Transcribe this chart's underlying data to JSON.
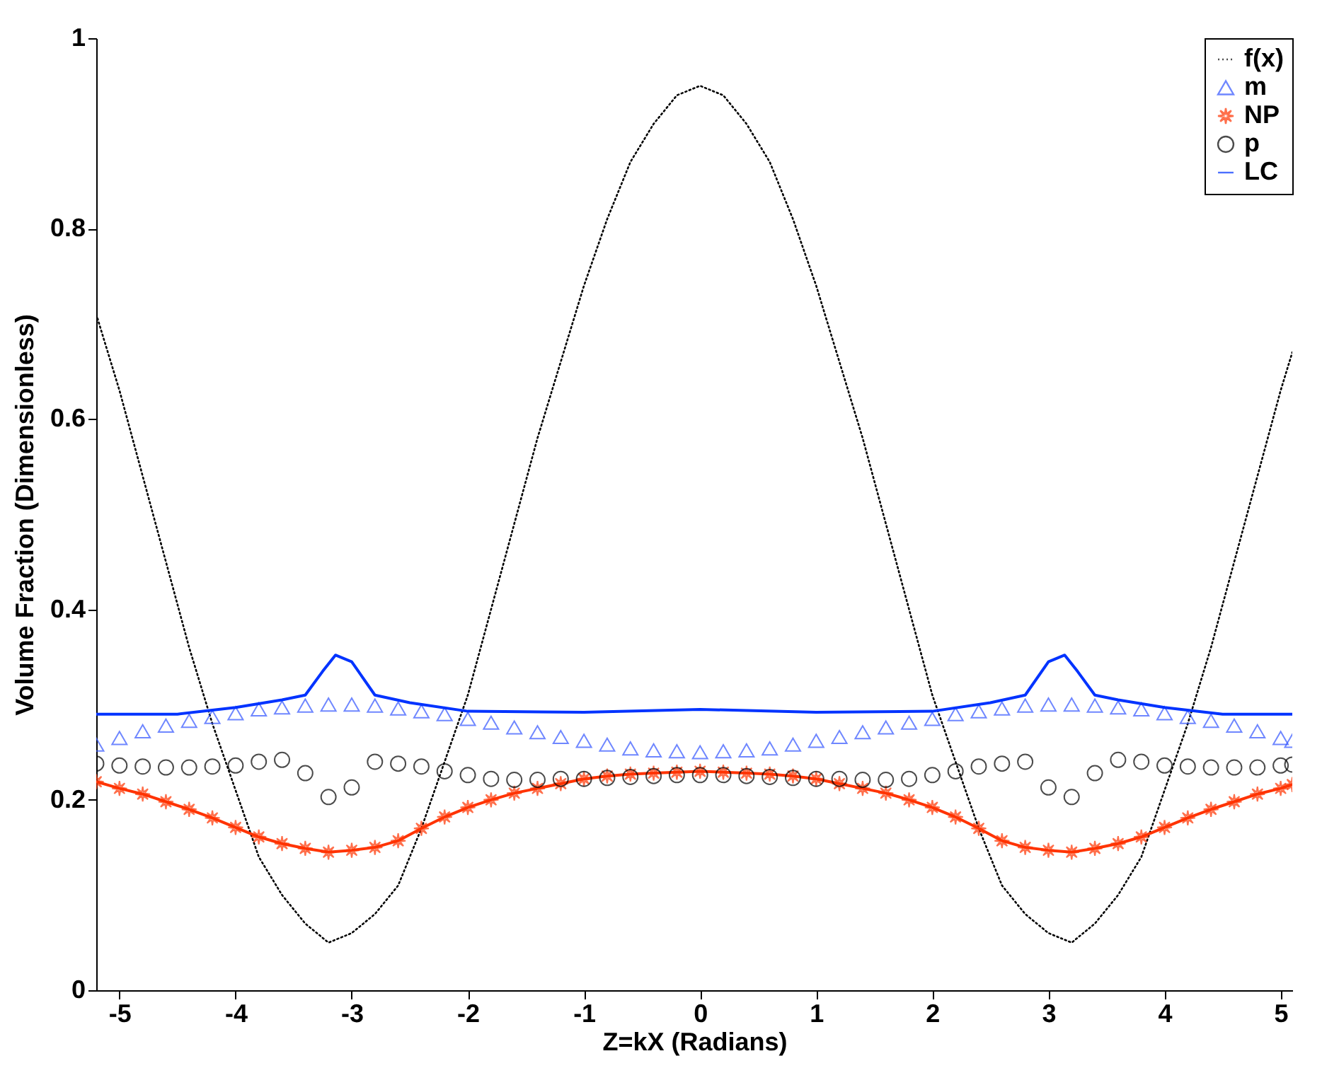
{
  "chart_data": {
    "type": "line",
    "xlabel": "Z=kX (Radians)",
    "ylabel": "Volume Fraction (Dimensionless)",
    "xlim": [
      -5.2,
      5.1
    ],
    "xticks": [
      -5,
      -4,
      -3,
      -2,
      -1,
      0,
      1,
      2,
      3,
      4,
      5
    ],
    "ylim": [
      0,
      1
    ],
    "yticks": [
      0,
      0.2,
      0.4,
      0.6,
      0.8,
      1
    ],
    "grid": false,
    "legend": "top right",
    "x": [
      -5.2,
      -5.0,
      -4.8,
      -4.6,
      -4.4,
      -4.2,
      -4.0,
      -3.8,
      -3.6,
      -3.4,
      -3.2,
      -3.0,
      -2.8,
      -2.6,
      -2.4,
      -2.2,
      -2.0,
      -1.8,
      -1.6,
      -1.4,
      -1.2,
      -1.0,
      -0.8,
      -0.6,
      -0.4,
      -0.2,
      0,
      0.2,
      0.4,
      0.6,
      0.8,
      1.0,
      1.2,
      1.4,
      1.6,
      1.8,
      2.0,
      2.2,
      2.4,
      2.6,
      2.8,
      3.0,
      3.2,
      3.4,
      3.6,
      3.8,
      4.0,
      4.2,
      4.4,
      4.6,
      4.8,
      5.0,
      5.1
    ],
    "series": [
      {
        "name": "f(x)",
        "line_style": "dotted",
        "marker": "none",
        "color": "#000000",
        "values": [
          0.71,
          0.63,
          0.54,
          0.45,
          0.36,
          0.28,
          0.21,
          0.14,
          0.1,
          0.07,
          0.05,
          0.06,
          0.08,
          0.11,
          0.17,
          0.24,
          0.31,
          0.4,
          0.49,
          0.58,
          0.66,
          0.74,
          0.81,
          0.87,
          0.91,
          0.94,
          0.95,
          0.94,
          0.91,
          0.87,
          0.81,
          0.74,
          0.66,
          0.58,
          0.49,
          0.4,
          0.31,
          0.24,
          0.17,
          0.11,
          0.08,
          0.06,
          0.05,
          0.07,
          0.1,
          0.14,
          0.21,
          0.28,
          0.36,
          0.45,
          0.54,
          0.63,
          0.67
        ]
      },
      {
        "name": "m",
        "type": "scatter",
        "marker": "triangle",
        "color": "#3355ff",
        "values": [
          0.258,
          0.265,
          0.272,
          0.278,
          0.283,
          0.287,
          0.291,
          0.295,
          0.297,
          0.299,
          0.3,
          0.3,
          0.299,
          0.296,
          0.293,
          0.29,
          0.285,
          0.281,
          0.276,
          0.271,
          0.266,
          0.262,
          0.258,
          0.254,
          0.252,
          0.251,
          0.25,
          0.251,
          0.252,
          0.254,
          0.258,
          0.262,
          0.266,
          0.271,
          0.276,
          0.281,
          0.285,
          0.29,
          0.293,
          0.296,
          0.299,
          0.3,
          0.3,
          0.299,
          0.297,
          0.295,
          0.291,
          0.287,
          0.283,
          0.278,
          0.272,
          0.265,
          0.262
        ]
      },
      {
        "name": "NP",
        "marker": "star",
        "line_style": "solid",
        "color": "#ff3300",
        "values": [
          0.219,
          0.212,
          0.206,
          0.198,
          0.19,
          0.181,
          0.171,
          0.161,
          0.154,
          0.149,
          0.145,
          0.147,
          0.15,
          0.157,
          0.17,
          0.182,
          0.192,
          0.2,
          0.207,
          0.212,
          0.217,
          0.222,
          0.225,
          0.227,
          0.228,
          0.229,
          0.23,
          0.229,
          0.228,
          0.227,
          0.225,
          0.222,
          0.217,
          0.212,
          0.207,
          0.2,
          0.192,
          0.182,
          0.17,
          0.157,
          0.15,
          0.147,
          0.145,
          0.149,
          0.154,
          0.161,
          0.171,
          0.181,
          0.19,
          0.198,
          0.206,
          0.212,
          0.216
        ]
      },
      {
        "name": "p",
        "type": "scatter",
        "marker": "circle",
        "color": "#000000",
        "values": [
          0.238,
          0.236,
          0.235,
          0.234,
          0.234,
          0.235,
          0.236,
          0.24,
          0.242,
          0.228,
          0.203,
          0.213,
          0.24,
          0.238,
          0.235,
          0.23,
          0.226,
          0.222,
          0.221,
          0.221,
          0.222,
          0.222,
          0.223,
          0.224,
          0.225,
          0.226,
          0.226,
          0.226,
          0.225,
          0.224,
          0.223,
          0.222,
          0.222,
          0.221,
          0.221,
          0.222,
          0.226,
          0.23,
          0.235,
          0.238,
          0.24,
          0.213,
          0.203,
          0.228,
          0.242,
          0.24,
          0.236,
          0.235,
          0.234,
          0.234,
          0.234,
          0.236,
          0.237
        ]
      },
      {
        "name": "LC",
        "line_style": "solid",
        "marker": "none",
        "color": "#0033ff",
        "x": [
          -5.2,
          -4.5,
          -4.0,
          -3.6,
          -3.4,
          -3.25,
          -3.14,
          -3.0,
          -2.8,
          -2.5,
          -2.0,
          -1.0,
          0,
          1.0,
          2.0,
          2.5,
          2.8,
          3.0,
          3.14,
          3.25,
          3.4,
          3.6,
          4.0,
          4.5,
          5.1
        ],
        "values": [
          0.29,
          0.29,
          0.297,
          0.305,
          0.31,
          0.335,
          0.352,
          0.345,
          0.31,
          0.302,
          0.293,
          0.292,
          0.295,
          0.292,
          0.293,
          0.302,
          0.31,
          0.345,
          0.352,
          0.335,
          0.31,
          0.305,
          0.297,
          0.29,
          0.29
        ]
      }
    ]
  }
}
